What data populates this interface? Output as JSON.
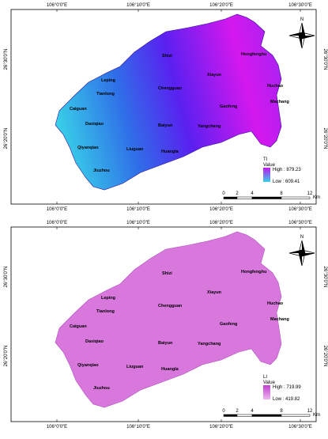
{
  "longitude_labels": [
    "106°0'0\"E",
    "106°10'0\"E",
    "106°20'0\"E",
    "106°30'0\"E"
  ],
  "latitude_labels": [
    "26°30'0\"N",
    "26°20'0\"N"
  ],
  "north": "N",
  "places": [
    "Shizi",
    "Hongfenghu",
    "Xiayun",
    "Huchao",
    "Leping",
    "Tianlong",
    "Chengguan",
    "Caiguan",
    "Gaofeng",
    "Machang",
    "Daxiqiao",
    "Baiyun",
    "Yangchang",
    "Qiyanqiao",
    "Liuguan",
    "Huangla",
    "Jiuzhou"
  ],
  "scale": {
    "ticks": [
      "0",
      "2",
      "4",
      "8",
      "12"
    ],
    "unit": "Km"
  },
  "panels": [
    {
      "index": "TI",
      "value_title": "Value",
      "high": "High : 879.23",
      "low": "Low : 609.41"
    },
    {
      "index": "LI",
      "value_title": "Value",
      "high": "High : 719.99",
      "low": "Low : 419.82"
    }
  ]
}
